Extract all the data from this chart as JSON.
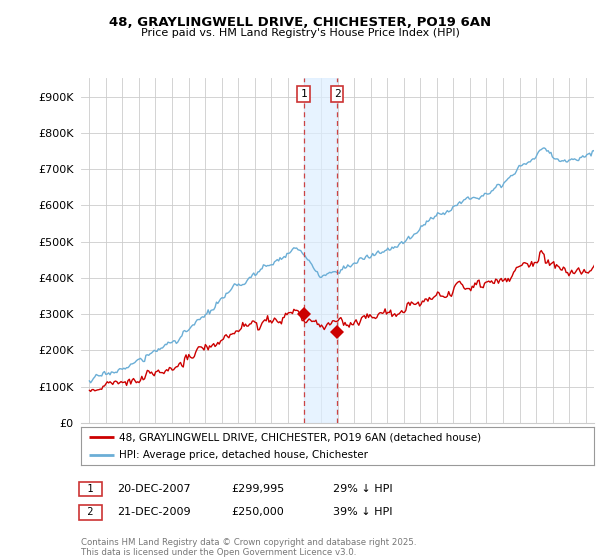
{
  "title_line1": "48, GRAYLINGWELL DRIVE, CHICHESTER, PO19 6AN",
  "title_line2": "Price paid vs. HM Land Registry's House Price Index (HPI)",
  "ylabel_ticks": [
    "£0",
    "£100K",
    "£200K",
    "£300K",
    "£400K",
    "£500K",
    "£600K",
    "£700K",
    "£800K",
    "£900K"
  ],
  "ytick_values": [
    0,
    100000,
    200000,
    300000,
    400000,
    500000,
    600000,
    700000,
    800000,
    900000
  ],
  "ylim": [
    0,
    950000
  ],
  "xlim_start": 1994.5,
  "xlim_end": 2025.5,
  "transaction1_date": 2007.97,
  "transaction1_price": 299995,
  "transaction2_date": 2009.97,
  "transaction2_price": 250000,
  "transaction1_text": "20-DEC-2007",
  "transaction1_price_text": "£299,995",
  "transaction1_hpi_text": "29% ↓ HPI",
  "transaction2_text": "21-DEC-2009",
  "transaction2_price_text": "£250,000",
  "transaction2_hpi_text": "39% ↓ HPI",
  "legend_line1": "48, GRAYLINGWELL DRIVE, CHICHESTER, PO19 6AN (detached house)",
  "legend_line2": "HPI: Average price, detached house, Chichester",
  "footer_text": "Contains HM Land Registry data © Crown copyright and database right 2025.\nThis data is licensed under the Open Government Licence v3.0.",
  "hpi_color": "#6baed6",
  "price_color": "#cc0000",
  "shaded_color": "#ddeeff",
  "shaded_alpha": 0.7,
  "background_color": "#ffffff",
  "grid_color": "#cccccc"
}
